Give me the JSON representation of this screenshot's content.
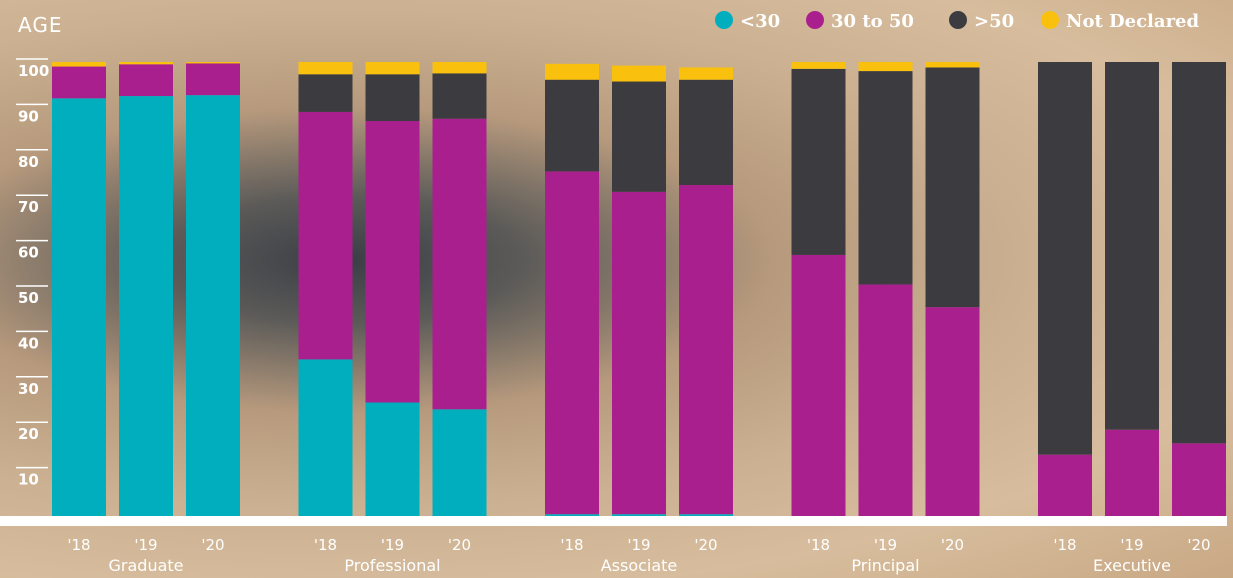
{
  "chart_data": {
    "type": "bar",
    "stacked": true,
    "title": "AGE",
    "yticks": [
      10,
      20,
      30,
      40,
      50,
      60,
      70,
      80,
      90,
      100
    ],
    "ylim": [
      0,
      100
    ],
    "legend_position": "top-right",
    "groups": [
      {
        "name": "Graduate",
        "years": [
          "'18",
          "'19",
          "'20"
        ]
      },
      {
        "name": "Professional",
        "years": [
          "'18",
          "'19",
          "'20"
        ]
      },
      {
        "name": "Associate",
        "years": [
          "'18",
          "'19",
          "'20"
        ]
      },
      {
        "name": "Principal",
        "years": [
          "'18",
          "'19",
          "'20"
        ]
      },
      {
        "name": "Executive",
        "years": [
          "'18",
          "'19",
          "'20"
        ]
      }
    ],
    "series": [
      {
        "name": "<30",
        "color": "#00aebd",
        "values": [
          92,
          92.5,
          92.7,
          34.5,
          25,
          23.5,
          0.4,
          0.4,
          0.4,
          0,
          0,
          0,
          0,
          0,
          0
        ]
      },
      {
        "name": "30 to 50",
        "color": "#aa1f8e",
        "values": [
          7,
          7,
          7,
          54.5,
          62,
          64,
          75.5,
          71,
          72.5,
          57.5,
          51,
          46,
          13.5,
          19,
          16
        ]
      },
      {
        "name": ">50",
        "color": "#3c3c40",
        "values": [
          0,
          0,
          0,
          8.3,
          10.3,
          10,
          20.2,
          24.3,
          23.2,
          41,
          47,
          52.8,
          86.5,
          81,
          84
        ]
      },
      {
        "name": "Not Declared",
        "color": "#f9c10e",
        "values": [
          1,
          0.5,
          0.3,
          2.7,
          2.7,
          2.5,
          3.5,
          3.5,
          2.7,
          1.5,
          2,
          1.2,
          0,
          0,
          0
        ]
      }
    ]
  }
}
